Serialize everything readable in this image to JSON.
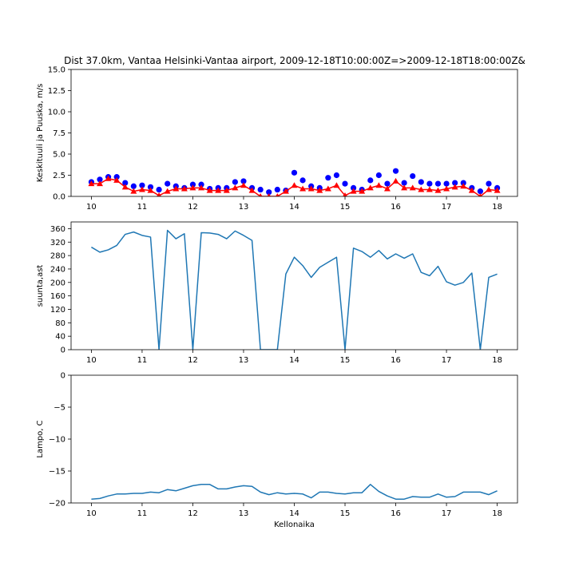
{
  "figure": {
    "title": "Dist 37.0km, Vantaa Helsinki-Vantaa airport, 2009-12-18T10:00:00Z=>2009-12-18T18:00:00Z&"
  },
  "chart_data": [
    {
      "type": "scatter",
      "ylabel": "Keskituuli ja Puuska, m/s",
      "xlabel": "",
      "xlim": [
        9.6,
        18.4
      ],
      "ylim": [
        0,
        15
      ],
      "xticks": [
        10,
        11,
        12,
        13,
        14,
        15,
        16,
        17,
        18
      ],
      "yticks": [
        "0.0",
        "2.5",
        "5.0",
        "7.5",
        "10.0",
        "12.5",
        "15.0"
      ],
      "x": [
        10.0,
        10.1667,
        10.3333,
        10.5,
        10.6667,
        10.8333,
        11.0,
        11.1667,
        11.3333,
        11.5,
        11.6667,
        11.8333,
        12.0,
        12.1667,
        12.3333,
        12.5,
        12.6667,
        12.8333,
        13.0,
        13.1667,
        13.3333,
        13.5,
        13.6667,
        13.8333,
        14.0,
        14.1667,
        14.3333,
        14.5,
        14.6667,
        14.8333,
        15.0,
        15.1667,
        15.3333,
        15.5,
        15.6667,
        15.8333,
        16.0,
        16.1667,
        16.3333,
        16.5,
        16.6667,
        16.8333,
        17.0,
        17.1667,
        17.3333,
        17.5,
        17.6667,
        17.8333,
        18.0
      ],
      "series": [
        {
          "marker": "circle",
          "color": "#0000ff",
          "values": [
            1.7,
            2.0,
            2.3,
            2.3,
            1.6,
            1.2,
            1.3,
            1.1,
            0.8,
            1.5,
            1.2,
            1.0,
            1.4,
            1.4,
            0.9,
            1.0,
            1.0,
            1.7,
            1.8,
            1.0,
            0.8,
            0.5,
            0.8,
            0.7,
            2.8,
            1.9,
            1.2,
            1.0,
            2.2,
            2.5,
            1.5,
            1.0,
            0.8,
            1.9,
            2.5,
            1.5,
            3.0,
            1.6,
            2.4,
            1.7,
            1.5,
            1.5,
            1.5,
            1.6,
            1.6,
            1.0,
            0.6,
            1.5,
            1.0
          ]
        },
        {
          "marker": "triangle",
          "color": "#ff0000",
          "line_color": "#ff0000",
          "values": [
            1.5,
            1.5,
            2.1,
            1.9,
            1.1,
            0.6,
            0.8,
            0.7,
            0.1,
            0.6,
            0.9,
            0.9,
            1.0,
            1.0,
            0.7,
            0.7,
            0.7,
            1.0,
            1.3,
            0.7,
            0.0,
            0.0,
            0.0,
            0.6,
            1.3,
            0.9,
            0.9,
            0.7,
            0.9,
            1.3,
            0.1,
            0.6,
            0.6,
            1.0,
            1.3,
            0.9,
            1.8,
            1.0,
            1.0,
            0.8,
            0.8,
            0.7,
            0.9,
            1.1,
            1.2,
            0.7,
            0.0,
            0.8,
            0.7
          ]
        }
      ]
    },
    {
      "type": "line",
      "ylabel": "suunta,ast",
      "xlabel": "",
      "xlim": [
        9.6,
        18.4
      ],
      "ylim": [
        0,
        380
      ],
      "xticks": [
        10,
        11,
        12,
        13,
        14,
        15,
        16,
        17,
        18
      ],
      "yticks": [
        "0",
        "40",
        "80",
        "120",
        "160",
        "200",
        "240",
        "280",
        "320",
        "360"
      ],
      "x": [
        10.0,
        10.1667,
        10.3333,
        10.5,
        10.6667,
        10.8333,
        11.0,
        11.1667,
        11.3333,
        11.5,
        11.6667,
        11.8333,
        12.0,
        12.1667,
        12.3333,
        12.5,
        12.6667,
        12.8333,
        13.0,
        13.1667,
        13.3333,
        13.5,
        13.6667,
        13.8333,
        14.0,
        14.1667,
        14.3333,
        14.5,
        14.6667,
        14.8333,
        15.0,
        15.1667,
        15.3333,
        15.5,
        15.6667,
        15.8333,
        16.0,
        16.1667,
        16.3333,
        16.5,
        16.6667,
        16.8333,
        17.0,
        17.1667,
        17.3333,
        17.5,
        17.6667,
        17.8333,
        18.0
      ],
      "series": [
        {
          "color": "#1f77b4",
          "values": [
            305,
            290,
            297,
            310,
            343,
            350,
            340,
            335,
            0,
            355,
            330,
            345,
            0,
            348,
            347,
            343,
            330,
            353,
            340,
            325,
            0,
            0,
            0,
            225,
            275,
            250,
            215,
            245,
            260,
            275,
            0,
            302,
            292,
            275,
            295,
            270,
            285,
            272,
            285,
            230,
            220,
            248,
            202,
            192,
            200,
            228,
            0,
            215,
            225
          ]
        }
      ]
    },
    {
      "type": "line",
      "ylabel": "Lampo, C",
      "xlabel": "Kellonaika",
      "xlim": [
        9.6,
        18.4
      ],
      "ylim": [
        -20,
        0
      ],
      "xticks": [
        10,
        11,
        12,
        13,
        14,
        15,
        16,
        17,
        18
      ],
      "yticks": [
        "−20",
        "−15",
        "−10",
        "−5",
        "0"
      ],
      "x": [
        10.0,
        10.1667,
        10.3333,
        10.5,
        10.6667,
        10.8333,
        11.0,
        11.1667,
        11.3333,
        11.5,
        11.6667,
        11.8333,
        12.0,
        12.1667,
        12.3333,
        12.5,
        12.6667,
        12.8333,
        13.0,
        13.1667,
        13.3333,
        13.5,
        13.6667,
        13.8333,
        14.0,
        14.1667,
        14.3333,
        14.5,
        14.6667,
        14.8333,
        15.0,
        15.1667,
        15.3333,
        15.5,
        15.6667,
        15.8333,
        16.0,
        16.1667,
        16.3333,
        16.5,
        16.6667,
        16.8333,
        17.0,
        17.1667,
        17.3333,
        17.5,
        17.6667,
        17.8333,
        18.0
      ],
      "series": [
        {
          "color": "#1f77b4",
          "values": [
            -19.4,
            -19.3,
            -18.9,
            -18.6,
            -18.6,
            -18.5,
            -18.5,
            -18.3,
            -18.4,
            -17.9,
            -18.1,
            -17.7,
            -17.3,
            -17.1,
            -17.1,
            -17.8,
            -17.8,
            -17.5,
            -17.3,
            -17.4,
            -18.3,
            -18.7,
            -18.4,
            -18.6,
            -18.5,
            -18.6,
            -19.2,
            -18.3,
            -18.3,
            -18.5,
            -18.6,
            -18.4,
            -18.4,
            -17.1,
            -18.2,
            -18.9,
            -19.4,
            -19.4,
            -19.0,
            -19.1,
            -19.1,
            -18.6,
            -19.1,
            -19.0,
            -18.3,
            -18.3,
            -18.3,
            -18.7,
            -18.1
          ]
        }
      ]
    }
  ]
}
